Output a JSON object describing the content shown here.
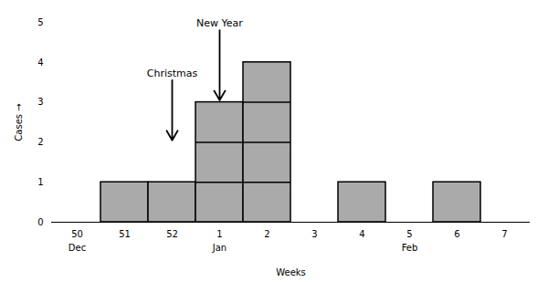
{
  "chart_data": {
    "type": "bar",
    "categories": [
      "50",
      "51",
      "52",
      "1",
      "2",
      "3",
      "4",
      "5",
      "6",
      "7"
    ],
    "values": [
      0,
      1,
      1,
      3,
      4,
      0,
      1,
      0,
      1,
      0
    ],
    "color": "#aaaaaa",
    "xlabel": "Weeks",
    "ylabel": "Cases",
    "ylim": [
      0,
      5
    ],
    "yticks": [
      0,
      1,
      2,
      3,
      4,
      5
    ],
    "grid": false,
    "month_labels": [
      "Dec",
      null,
      null,
      "Jan",
      null,
      null,
      null,
      "Feb",
      null,
      null
    ],
    "annotations": [
      {
        "text": "Christmas",
        "x": "52",
        "y": 2.05,
        "text_y": 3.6
      },
      {
        "text": "New Year",
        "x": "1",
        "y": 3.05,
        "text_y": 4.85
      }
    ]
  }
}
